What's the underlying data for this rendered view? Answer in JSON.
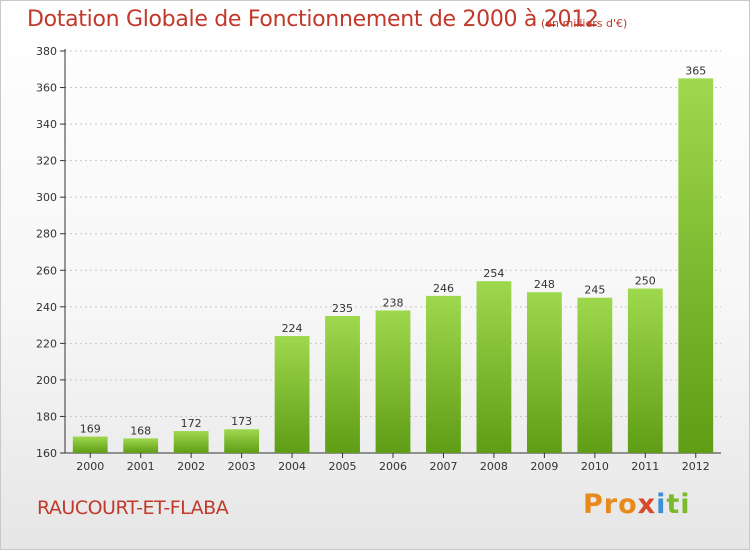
{
  "header": {
    "title": "Dotation Globale de Fonctionnement de 2000 à 2012",
    "subtitle": "(en milliers d'€)"
  },
  "footer": {
    "city": "RAUCOURT-ET-FLABA",
    "brand": {
      "p1": "Pro",
      "p2": "x",
      "p3": "i",
      "p4": "ti"
    }
  },
  "colors": {
    "title": "#c0392b",
    "bar_top": "#9ed84d",
    "bar_bottom": "#5f9d16",
    "grid": "#c8c8c8"
  },
  "chart_data": {
    "type": "bar",
    "title": "Dotation Globale de Fonctionnement de 2000 à 2012",
    "subtitle": "(en milliers d'€)",
    "xlabel": "",
    "ylabel": "",
    "categories": [
      "2000",
      "2001",
      "2002",
      "2003",
      "2004",
      "2005",
      "2006",
      "2007",
      "2008",
      "2009",
      "2010",
      "2011",
      "2012"
    ],
    "values": [
      169,
      168,
      172,
      173,
      224,
      235,
      238,
      246,
      254,
      248,
      245,
      250,
      365
    ],
    "ylim": [
      160,
      380
    ],
    "yticks": [
      160,
      180,
      200,
      220,
      240,
      260,
      280,
      300,
      320,
      340,
      360,
      380
    ],
    "grid": true,
    "legend": "none"
  }
}
